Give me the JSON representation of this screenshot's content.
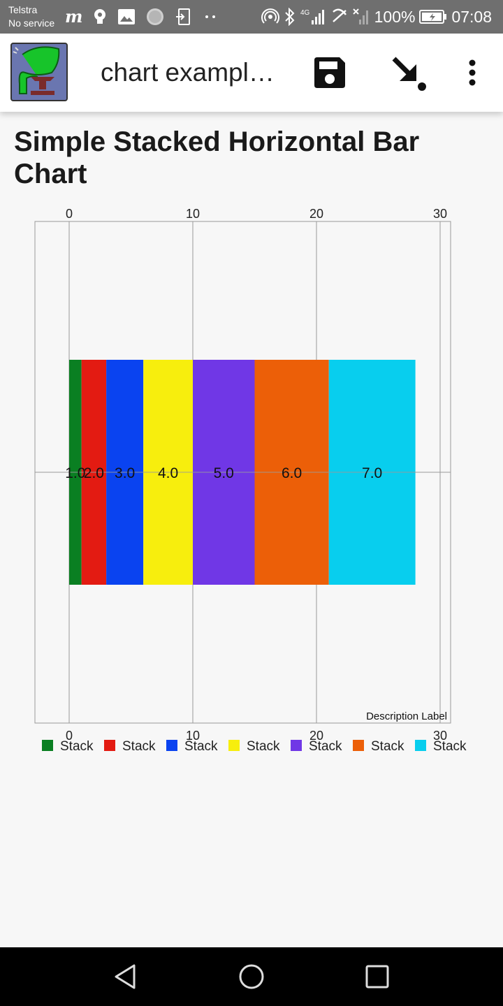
{
  "status_bar": {
    "carrier_line1": "Telstra",
    "carrier_line2": "No service",
    "network": "4G",
    "battery": "100%",
    "time": "07:08"
  },
  "app_bar": {
    "title": "chart examples",
    "actions": [
      "save-icon",
      "download-arrow-icon",
      "more-vertical-icon"
    ]
  },
  "page": {
    "heading": "Simple Stacked Horizontal Bar Chart"
  },
  "chart_data": {
    "type": "bar",
    "orientation": "horizontal",
    "stacked": true,
    "title": "Simple Stacked Horizontal Bar Chart",
    "description": "Description Label",
    "xlim": [
      0,
      30
    ],
    "x_ticks": [
      "0",
      "10",
      "20",
      "30"
    ],
    "grid": true,
    "legend_placement": "bottom",
    "series": [
      {
        "name": "Stack",
        "values": [
          1.0
        ],
        "label": "1.0",
        "color": "#0a7f22"
      },
      {
        "name": "Stack",
        "values": [
          2.0
        ],
        "label": "2.0",
        "color": "#e31b12"
      },
      {
        "name": "Stack",
        "values": [
          3.0
        ],
        "label": "3.0",
        "color": "#0a43f0"
      },
      {
        "name": "Stack",
        "values": [
          4.0
        ],
        "label": "4.0",
        "color": "#f7ee0d"
      },
      {
        "name": "Stack",
        "values": [
          5.0
        ],
        "label": "5.0",
        "color": "#7037e6"
      },
      {
        "name": "Stack",
        "values": [
          6.0
        ],
        "label": "6.0",
        "color": "#ec5f08"
      },
      {
        "name": "Stack",
        "values": [
          7.0
        ],
        "label": "7.0",
        "color": "#08ceee"
      }
    ]
  }
}
